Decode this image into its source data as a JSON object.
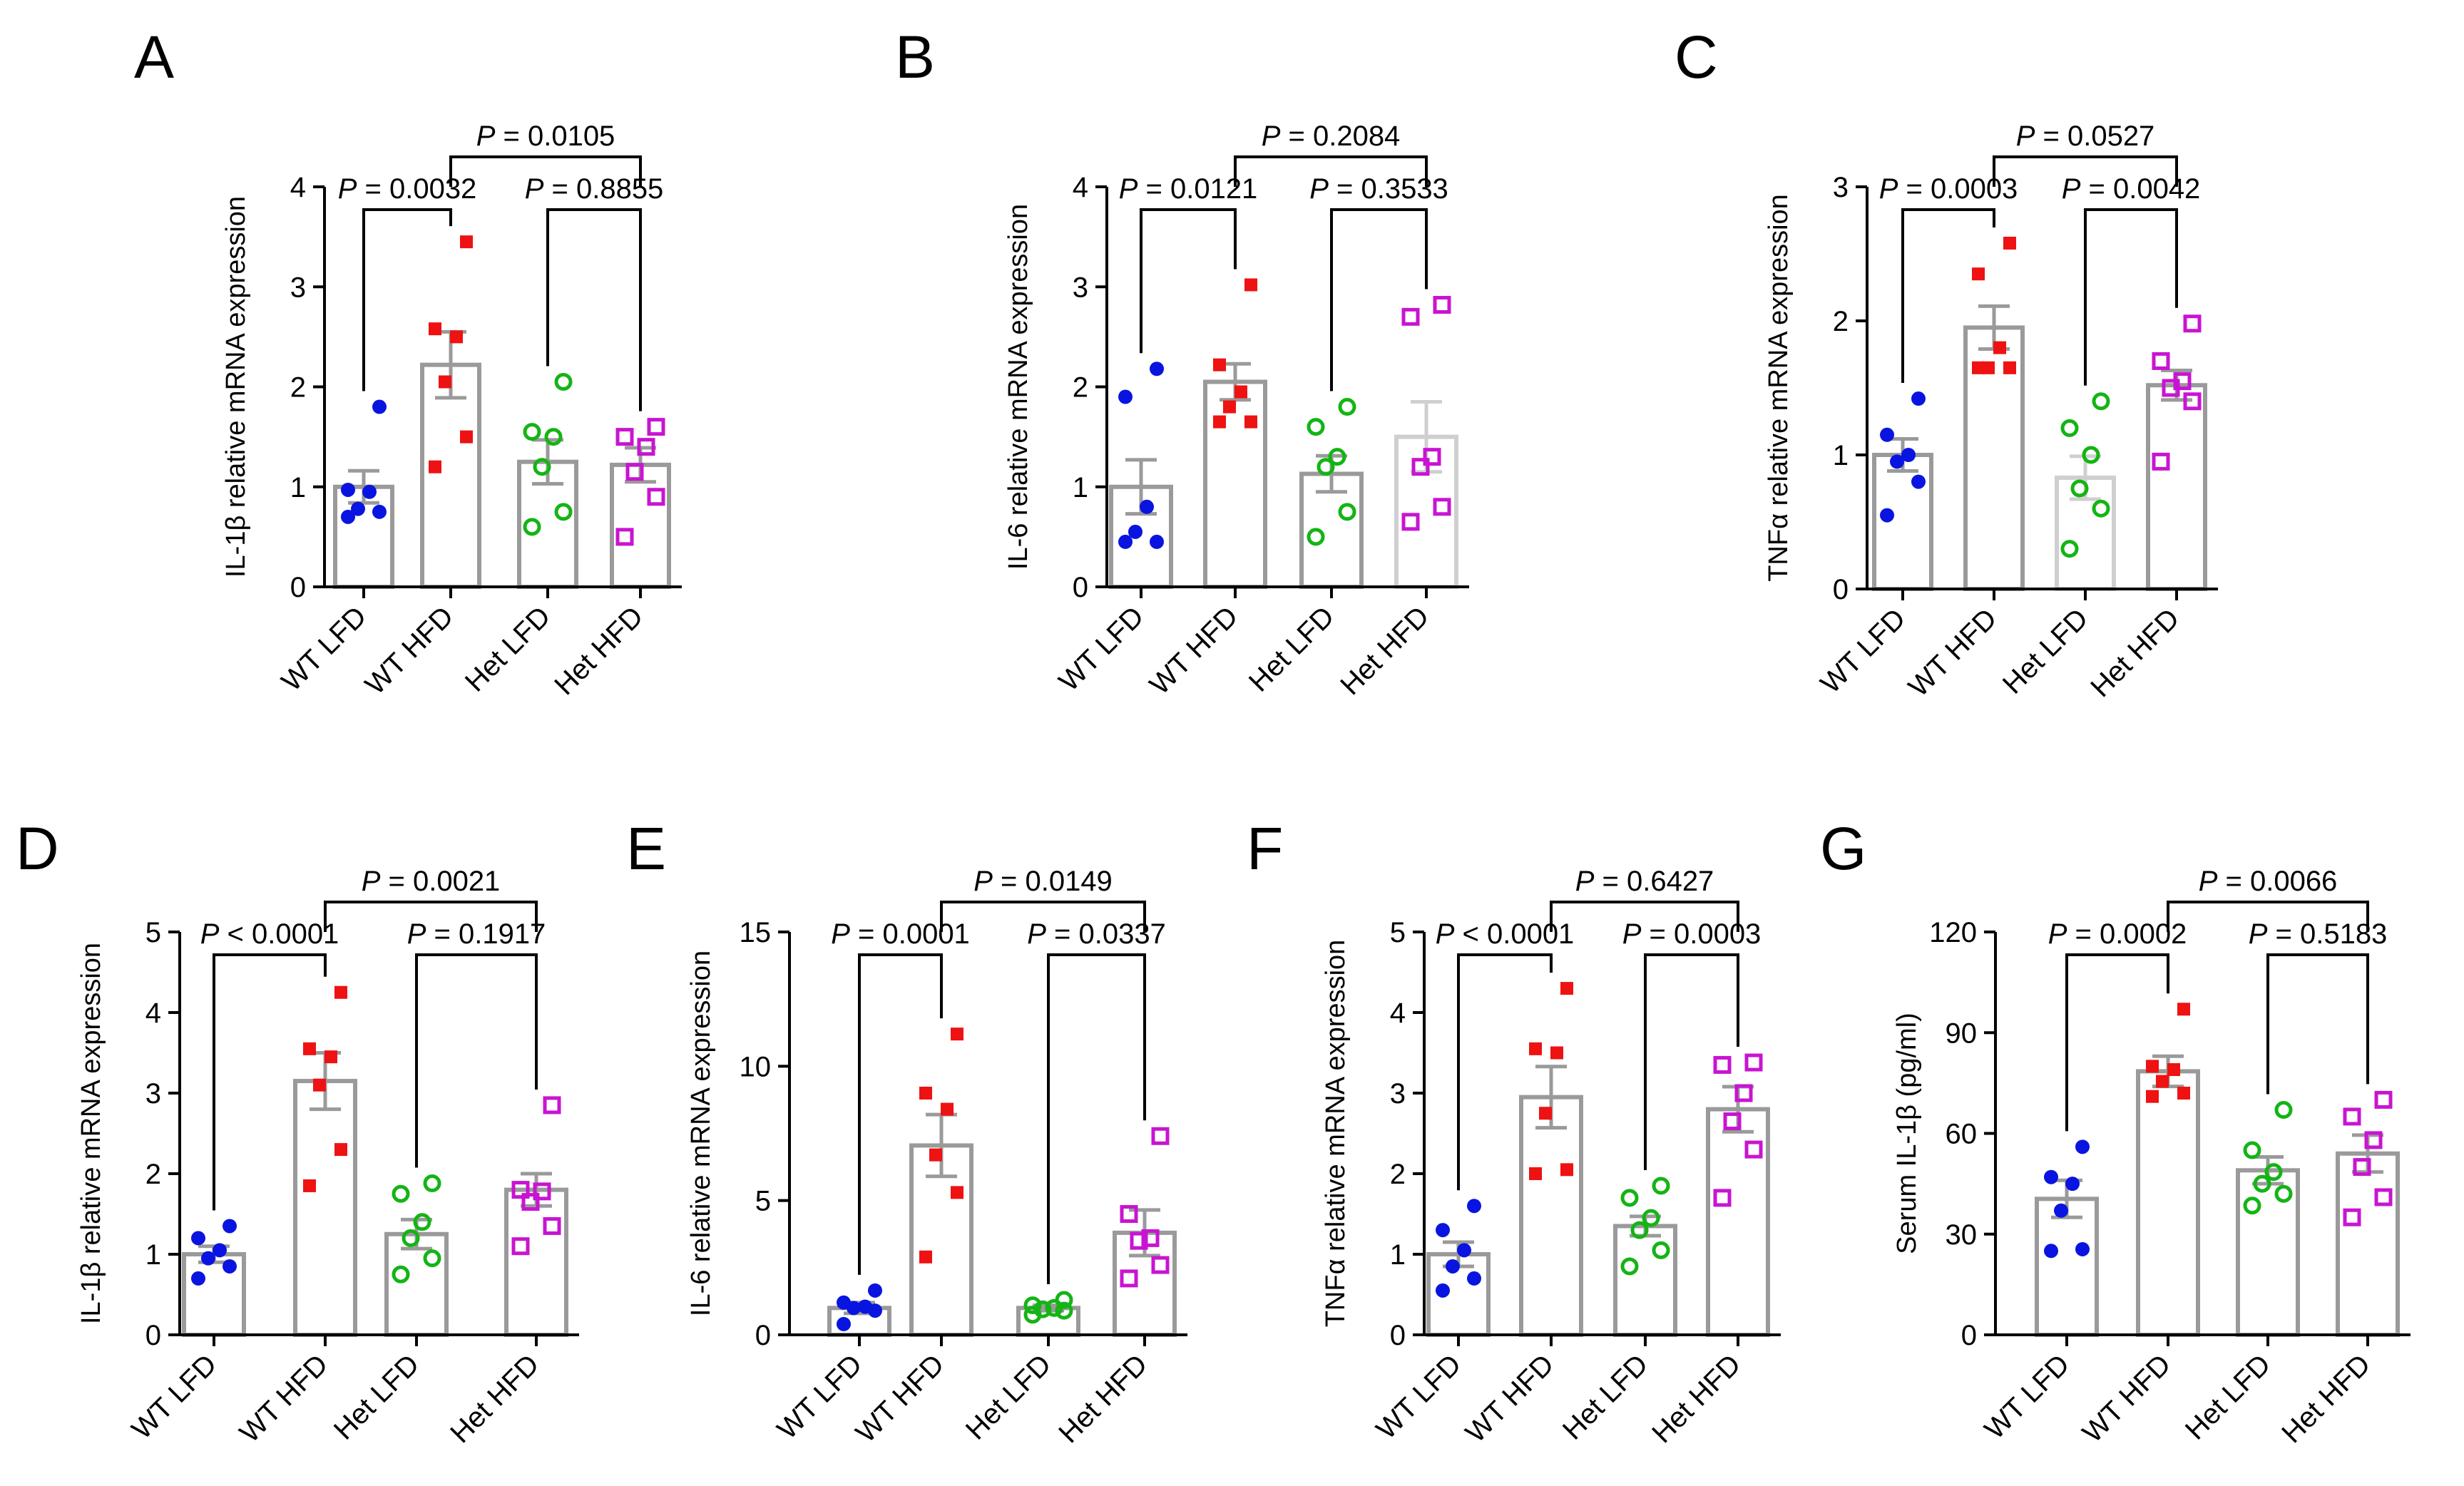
{
  "figure": {
    "groups": [
      "WT  LFD",
      "WT  HFD",
      "Het  LFD",
      "Het  HFD"
    ],
    "colors": {
      "WT LFD": "#0a14e0",
      "WT HFD": "#ee1212",
      "Het LFD": "#14b414",
      "Het HFD": "#c814d2",
      "bar": "#9a9a9a",
      "barLight": "#cfcfcf",
      "axis": "#000000"
    }
  },
  "chart_data": [
    {
      "panel": "A",
      "type": "bar",
      "ylabel": "IL-1β relative mRNA expression",
      "categories": [
        "WT  LFD",
        "WT  HFD",
        "Het  LFD",
        "Het  HFD"
      ],
      "ylim": [
        0,
        4
      ],
      "yticks": [
        "0",
        "1",
        "2",
        "3",
        "4"
      ],
      "ytick_values": [
        0,
        1,
        2,
        3,
        4
      ],
      "means": [
        1.0,
        2.22,
        1.25,
        1.22
      ],
      "sem": [
        0.16,
        0.33,
        0.22,
        0.17
      ],
      "points": [
        [
          0.7,
          0.75,
          0.78,
          0.95,
          0.97,
          1.8
        ],
        [
          1.2,
          1.5,
          2.05,
          2.5,
          2.58,
          3.45
        ],
        [
          0.6,
          0.75,
          1.2,
          1.5,
          1.55,
          2.05
        ],
        [
          0.5,
          0.9,
          1.15,
          1.4,
          1.5,
          1.6
        ]
      ],
      "marker_types": [
        "filled-circle",
        "filled-square",
        "open-circle",
        "open-square"
      ],
      "light_bars": [
        false,
        false,
        false,
        false
      ],
      "comparisons": [
        {
          "groups": [
            0,
            1
          ],
          "label_p": "P",
          "label_rest": " = 0.0032"
        },
        {
          "groups": [
            2,
            3
          ],
          "label_p": "P",
          "label_rest": " = 0.8855"
        },
        {
          "groups": [
            1,
            3
          ],
          "label_p": "P",
          "label_rest": " = 0.0105",
          "top": true
        }
      ]
    },
    {
      "panel": "B",
      "type": "bar",
      "ylabel": "IL-6 relative mRNA expression",
      "categories": [
        "WT  LFD",
        "WT  HFD",
        "Het  LFD",
        "Het  HFD"
      ],
      "ylim": [
        0,
        4
      ],
      "yticks": [
        "0",
        "1",
        "2",
        "3",
        "4"
      ],
      "ytick_values": [
        0,
        1,
        2,
        3,
        4
      ],
      "means": [
        1.0,
        2.05,
        1.13,
        1.5
      ],
      "sem": [
        0.27,
        0.18,
        0.18,
        0.35
      ],
      "points": [
        [
          0.45,
          0.45,
          0.55,
          0.8,
          1.9,
          2.18
        ],
        [
          1.65,
          1.65,
          1.8,
          1.95,
          2.22,
          3.02
        ],
        [
          0.5,
          0.75,
          1.2,
          1.3,
          1.6,
          1.8
        ],
        [
          0.65,
          0.8,
          1.2,
          1.3,
          2.7,
          2.82
        ]
      ],
      "marker_types": [
        "filled-circle",
        "filled-square",
        "open-circle",
        "open-square"
      ],
      "light_bars": [
        false,
        false,
        false,
        true
      ],
      "comparisons": [
        {
          "groups": [
            0,
            1
          ],
          "label_p": "P",
          "label_rest": " = 0.0121"
        },
        {
          "groups": [
            2,
            3
          ],
          "label_p": "P",
          "label_rest": " = 0.3533"
        },
        {
          "groups": [
            1,
            3
          ],
          "label_p": "P",
          "label_rest": " = 0.2084",
          "top": true
        }
      ]
    },
    {
      "panel": "C",
      "type": "bar",
      "ylabel": "TNFα relative mRNA expression",
      "categories": [
        "WT  LFD",
        "WT  HFD",
        "Het  LFD",
        "Het  HFD"
      ],
      "ylim": [
        0,
        3
      ],
      "yticks": [
        "0",
        "1",
        "2",
        "3"
      ],
      "ytick_values": [
        0,
        1,
        2,
        3
      ],
      "means": [
        1.0,
        1.95,
        0.83,
        1.52
      ],
      "sem": [
        0.12,
        0.16,
        0.16,
        0.11
      ],
      "points": [
        [
          0.55,
          0.8,
          0.95,
          1.0,
          1.15,
          1.42
        ],
        [
          1.65,
          1.65,
          1.65,
          1.8,
          2.35,
          2.58
        ],
        [
          0.3,
          0.6,
          0.75,
          1.0,
          1.2,
          1.4
        ],
        [
          0.95,
          1.4,
          1.5,
          1.55,
          1.7,
          1.98
        ]
      ],
      "marker_types": [
        "filled-circle",
        "filled-square",
        "open-circle",
        "open-square"
      ],
      "light_bars": [
        false,
        false,
        true,
        false
      ],
      "comparisons": [
        {
          "groups": [
            0,
            1
          ],
          "label_p": "P",
          "label_rest": " = 0.0003"
        },
        {
          "groups": [
            2,
            3
          ],
          "label_p": "P",
          "label_rest": " = 0.0042"
        },
        {
          "groups": [
            1,
            3
          ],
          "label_p": "P",
          "label_rest": " = 0.0527",
          "top": true
        }
      ]
    },
    {
      "panel": "D",
      "type": "bar",
      "ylabel": "IL-1β relative mRNA expression",
      "categories": [
        "WT  LFD",
        "WT  HFD",
        "Het  LFD",
        "Het  HFD"
      ],
      "ylim": [
        0,
        5
      ],
      "yticks": [
        "0",
        "1",
        "2",
        "3",
        "4",
        "5"
      ],
      "ytick_values": [
        0,
        1,
        2,
        3,
        4,
        5
      ],
      "means": [
        1.0,
        3.15,
        1.25,
        1.8
      ],
      "sem": [
        0.1,
        0.35,
        0.18,
        0.2
      ],
      "points": [
        [
          0.7,
          0.85,
          0.95,
          1.05,
          1.2,
          1.35
        ],
        [
          1.85,
          2.3,
          3.1,
          3.45,
          3.55,
          4.25
        ],
        [
          0.75,
          0.95,
          1.2,
          1.4,
          1.75,
          1.88
        ],
        [
          1.1,
          1.35,
          1.65,
          1.78,
          1.8,
          2.85
        ]
      ],
      "marker_types": [
        "filled-circle",
        "filled-square",
        "open-circle",
        "open-square"
      ],
      "light_bars": [
        false,
        false,
        false,
        false
      ],
      "comparisons": [
        {
          "groups": [
            0,
            1
          ],
          "label_p": "P",
          "label_rest": " < 0.0001"
        },
        {
          "groups": [
            2,
            3
          ],
          "label_p": "P",
          "label_rest": " = 0.1917"
        },
        {
          "groups": [
            1,
            3
          ],
          "label_p": "P",
          "label_rest": " = 0.0021",
          "top": true
        }
      ]
    },
    {
      "panel": "E",
      "type": "bar",
      "ylabel": "IL-6 relative mRNA expression",
      "categories": [
        "WT  LFD",
        "WT  HFD",
        "Het  LFD",
        "Het  HFD"
      ],
      "ylim": [
        0,
        15
      ],
      "yticks": [
        "0",
        "5",
        "10",
        "15"
      ],
      "ytick_values": [
        0,
        5,
        10,
        15
      ],
      "means": [
        1.0,
        7.05,
        1.0,
        3.8
      ],
      "sem": [
        0.2,
        1.15,
        0.1,
        0.85
      ],
      "points": [
        [
          0.4,
          0.9,
          1.0,
          1.05,
          1.2,
          1.65
        ],
        [
          2.9,
          5.3,
          6.7,
          8.4,
          9.0,
          11.2
        ],
        [
          0.75,
          0.9,
          0.95,
          1.0,
          1.1,
          1.3
        ],
        [
          2.1,
          2.6,
          3.5,
          3.6,
          4.5,
          7.4
        ]
      ],
      "marker_types": [
        "filled-circle",
        "filled-square",
        "open-circle",
        "open-square"
      ],
      "light_bars": [
        false,
        false,
        false,
        false
      ],
      "comparisons": [
        {
          "groups": [
            0,
            1
          ],
          "label_p": "P",
          "label_rest": " = 0.0001"
        },
        {
          "groups": [
            2,
            3
          ],
          "label_p": "P",
          "label_rest": " = 0.0337"
        },
        {
          "groups": [
            1,
            3
          ],
          "label_p": "P",
          "label_rest": " = 0.0149",
          "top": true
        }
      ]
    },
    {
      "panel": "F",
      "type": "bar",
      "ylabel": "TNFα relative mRNA expression",
      "categories": [
        "WT  LFD",
        "WT  HFD",
        "Het  LFD",
        "Het  HFD"
      ],
      "ylim": [
        0,
        5
      ],
      "yticks": [
        "0",
        "1",
        "2",
        "3",
        "4",
        "5"
      ],
      "ytick_values": [
        0,
        1,
        2,
        3,
        4,
        5
      ],
      "means": [
        1.0,
        2.95,
        1.35,
        2.8
      ],
      "sem": [
        0.15,
        0.38,
        0.12,
        0.28
      ],
      "points": [
        [
          0.55,
          0.7,
          0.85,
          1.05,
          1.3,
          1.6
        ],
        [
          2.0,
          2.05,
          2.75,
          3.5,
          3.55,
          4.3
        ],
        [
          0.85,
          1.05,
          1.3,
          1.45,
          1.7,
          1.85
        ],
        [
          1.7,
          2.3,
          2.65,
          3.0,
          3.35,
          3.38
        ]
      ],
      "marker_types": [
        "filled-circle",
        "filled-square",
        "open-circle",
        "open-square"
      ],
      "light_bars": [
        false,
        false,
        false,
        false
      ],
      "comparisons": [
        {
          "groups": [
            0,
            1
          ],
          "label_p": "P",
          "label_rest": " < 0.0001"
        },
        {
          "groups": [
            2,
            3
          ],
          "label_p": "P",
          "label_rest": " = 0.0003"
        },
        {
          "groups": [
            1,
            3
          ],
          "label_p": "P",
          "label_rest": " = 0.6427",
          "top": true
        }
      ]
    },
    {
      "panel": "G",
      "type": "bar",
      "ylabel": "Serum IL-1β (pg/ml)",
      "categories": [
        "WT  LFD",
        "WT  HFD",
        "Het  LFD",
        "Het  HFD"
      ],
      "ylim": [
        0,
        120
      ],
      "yticks": [
        "0",
        "30",
        "60",
        "90",
        "120"
      ],
      "ytick_values": [
        0,
        30,
        60,
        90,
        120
      ],
      "means": [
        40.5,
        78.5,
        49.0,
        54.0
      ],
      "sem": [
        5.5,
        4.5,
        4.0,
        5.5
      ],
      "points": [
        [
          25.0,
          25.5,
          37.0,
          45.0,
          47.0,
          56.0
        ],
        [
          71.0,
          72.0,
          75.5,
          79.0,
          80.0,
          97.0
        ],
        [
          38.5,
          42.0,
          45.0,
          48.5,
          55.0,
          67.0
        ],
        [
          35.0,
          41.0,
          50.0,
          58.0,
          65.0,
          70.0
        ]
      ],
      "marker_types": [
        "filled-circle",
        "filled-square",
        "open-circle",
        "open-square"
      ],
      "light_bars": [
        false,
        false,
        false,
        false
      ],
      "comparisons": [
        {
          "groups": [
            0,
            1
          ],
          "label_p": "P",
          "label_rest": " = 0.0002"
        },
        {
          "groups": [
            2,
            3
          ],
          "label_p": "P",
          "label_rest": " = 0.5183"
        },
        {
          "groups": [
            1,
            3
          ],
          "label_p": "P",
          "label_rest": " = 0.0066",
          "top": true
        }
      ]
    }
  ]
}
